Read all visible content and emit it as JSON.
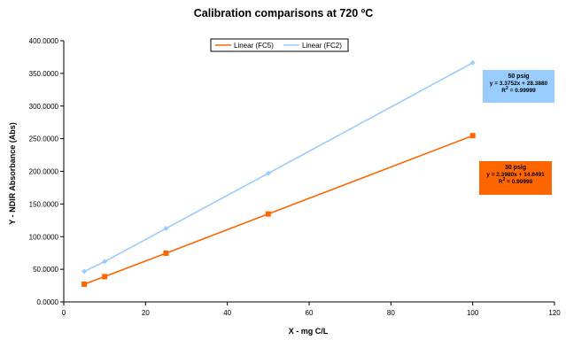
{
  "chart_data": {
    "type": "line",
    "title": "Calibration comparisons at 720 ºC",
    "xlabel": "X - mg C/L",
    "ylabel": "Y - NDIR Absorbance (Abs)",
    "xlim": [
      0,
      120
    ],
    "ylim": [
      0,
      400
    ],
    "x_ticks": [
      "0",
      "20",
      "40",
      "60",
      "80",
      "100",
      "120"
    ],
    "y_ticks": [
      "0.0000",
      "50.0000",
      "100.0000",
      "150.0000",
      "200.0000",
      "250.0000",
      "300.0000",
      "350.0000",
      "400.0000"
    ],
    "grid": false,
    "legend_position": "top",
    "series": [
      {
        "name": "Linear (FC5)",
        "color": "#FF6600",
        "marker": "square",
        "points": [
          [
            5,
            27.2
          ],
          [
            10,
            38.8
          ],
          [
            25,
            74.6
          ],
          [
            50,
            134.7
          ],
          [
            100,
            254.6
          ]
        ]
      },
      {
        "name": "Linear (FC2)",
        "color": "#99CCFF",
        "marker": "diamond",
        "points": [
          [
            5,
            46.7
          ],
          [
            10,
            61.8
          ],
          [
            25,
            112.5
          ],
          [
            50,
            196.9
          ],
          [
            100,
            366.2
          ]
        ]
      }
    ],
    "annotations": [
      {
        "label": "50 psig",
        "equation": "y = 3.3752x + 28.3880",
        "r2_prefix": "R",
        "r2_exp": "2",
        "r2_value": " = 0.99999",
        "fill": "#99CCFF"
      },
      {
        "label": "30 psig",
        "equation": "y = 2.3980x + 14.8491",
        "r2_prefix": "R",
        "r2_exp": "2",
        "r2_value": " = 0.99999",
        "fill": "#FF6600"
      }
    ]
  }
}
